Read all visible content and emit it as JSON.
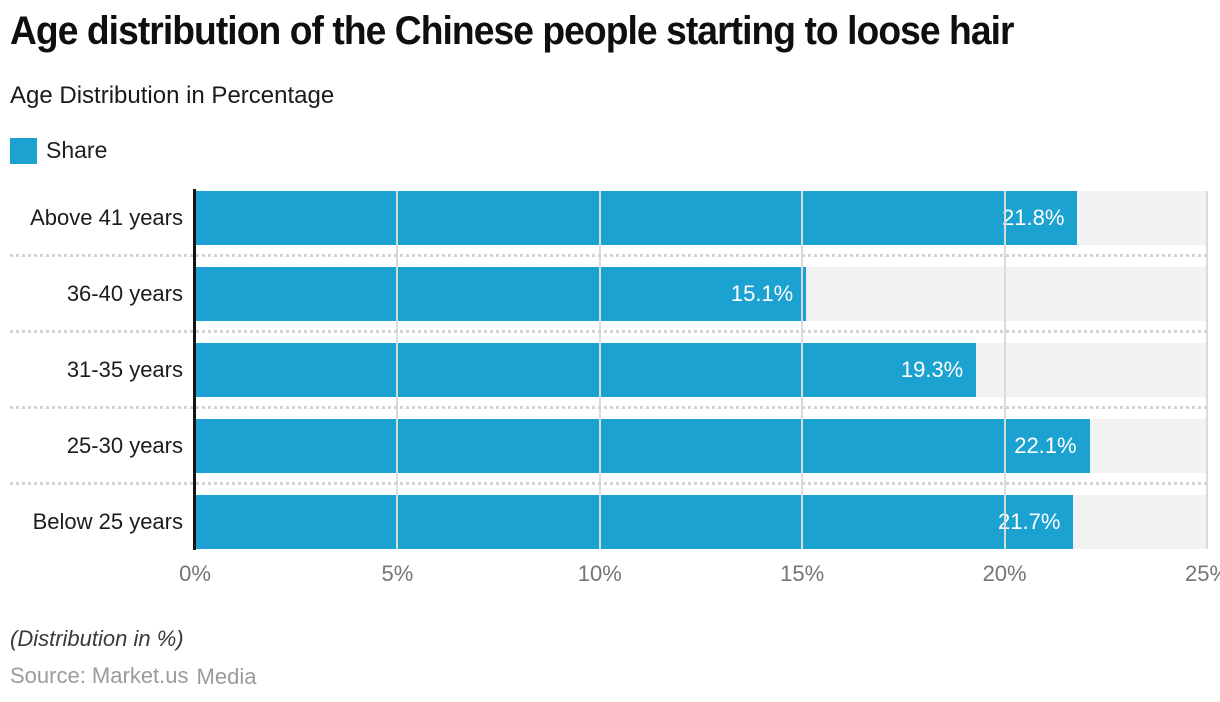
{
  "header": {
    "title": "Age distribution of the Chinese people starting to loose hair",
    "subtitle": "Age Distribution in Percentage"
  },
  "legend": {
    "label": "Share",
    "color": "#1CA2D0"
  },
  "chart_data": {
    "type": "bar",
    "orientation": "horizontal",
    "title": "Age distribution of the Chinese people starting to loose hair",
    "subtitle": "Age Distribution in Percentage",
    "series_name": "Share",
    "categories": [
      "Above 41 years",
      "36-40 years",
      "31-35 years",
      "25-30 years",
      "Below 25 years"
    ],
    "values": [
      21.8,
      15.1,
      19.3,
      22.1,
      21.7
    ],
    "value_labels": [
      "21.8%",
      "15.1%",
      "19.3%",
      "22.1%",
      "21.7%"
    ],
    "xlabel": "",
    "ylabel": "",
    "xlim": [
      0,
      25
    ],
    "x_ticks": [
      "0%",
      "5%",
      "10%",
      "15%",
      "20%",
      "25%"
    ],
    "x_tick_values": [
      0,
      5,
      10,
      15,
      20,
      25
    ],
    "grid": "vertical-on",
    "legend_position": "top-left",
    "bar_color": "#1CA2D0",
    "track_color": "#F2F2F2",
    "gridline_color": "#DADADA",
    "axis_line_color": "#141414"
  },
  "footer": {
    "note": "(Distribution in %)",
    "source": "Source: Market.us",
    "source_suffix": "Media"
  }
}
